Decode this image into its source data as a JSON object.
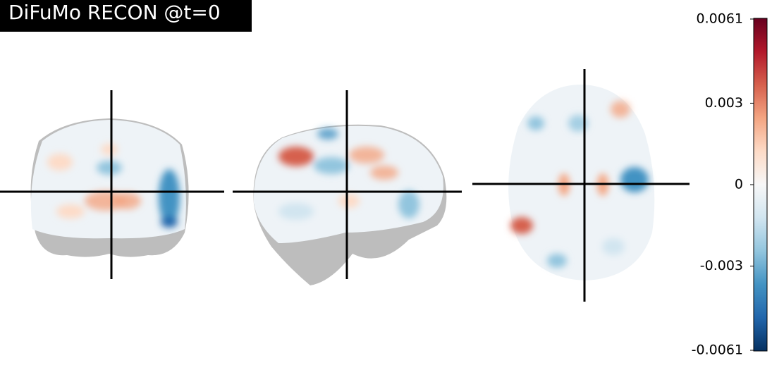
{
  "title": "DiFuMo RECON @t=0",
  "colorbar": {
    "range": [
      -0.0061,
      0.0061
    ],
    "ticks": [
      -0.0061,
      -0.003,
      0,
      0.003,
      0.0061
    ]
  }
}
